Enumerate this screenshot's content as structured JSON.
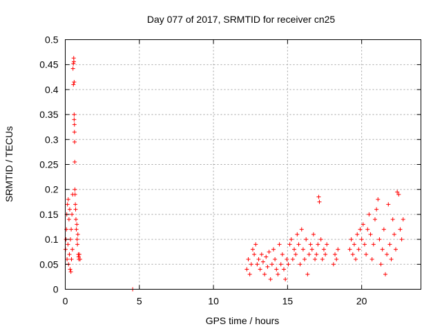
{
  "chart_data": {
    "type": "scatter",
    "title": "Day 077 of 2017, SRMTID for receiver cn25",
    "xlabel": "GPS time / hours",
    "ylabel": "SRMTID / TECUs",
    "xlim": [
      0,
      24
    ],
    "ylim": [
      0,
      0.5
    ],
    "grid": true,
    "marker": "plus",
    "colors": {
      "series": "#ff0000",
      "axis": "#000000",
      "grid": "#a0a0a0"
    },
    "x_ticks": [
      "0",
      "5",
      "10",
      "15",
      "20"
    ],
    "x_tick_values": [
      0,
      5,
      10,
      15,
      20
    ],
    "y_ticks": [
      "0",
      "0.05",
      "0.1",
      "0.15",
      "0.2",
      "0.25",
      "0.3",
      "0.35",
      "0.4",
      "0.45",
      "0.5"
    ],
    "y_tick_values": [
      0,
      0.05,
      0.1,
      0.15,
      0.2,
      0.25,
      0.3,
      0.35,
      0.4,
      0.45,
      0.5
    ],
    "series": [
      {
        "name": "SRMTID",
        "x": [
          0.02,
          0.05,
          0.08,
          0.1,
          0.12,
          0.15,
          0.18,
          0.2,
          0.22,
          0.25,
          0.28,
          0.3,
          0.33,
          0.35,
          0.38,
          0.4,
          0.42,
          0.45,
          0.48,
          0.5,
          0.52,
          0.55,
          0.55,
          0.57,
          0.58,
          0.6,
          0.6,
          0.6,
          0.62,
          0.62,
          0.63,
          0.64,
          0.65,
          0.66,
          0.68,
          0.7,
          0.72,
          0.75,
          0.78,
          0.8,
          0.82,
          0.85,
          0.88,
          0.9,
          0.92,
          0.95,
          1.0,
          4.55,
          12.25,
          12.35,
          12.45,
          12.55,
          12.65,
          12.75,
          12.85,
          12.95,
          13.05,
          13.15,
          13.25,
          13.35,
          13.45,
          13.55,
          13.65,
          13.75,
          13.85,
          13.95,
          14.05,
          14.15,
          14.25,
          14.35,
          14.45,
          14.55,
          14.65,
          14.75,
          14.85,
          14.95,
          15.05,
          15.15,
          15.25,
          15.35,
          15.45,
          15.55,
          15.65,
          15.75,
          15.85,
          15.95,
          16.05,
          16.15,
          16.25,
          16.35,
          16.45,
          16.55,
          16.65,
          16.75,
          16.85,
          16.95,
          17.05,
          17.1,
          17.15,
          17.25,
          17.35,
          17.45,
          17.55,
          17.65,
          18.1,
          18.2,
          18.3,
          18.4,
          19.2,
          19.3,
          19.4,
          19.5,
          19.6,
          19.7,
          19.8,
          19.9,
          20.0,
          20.1,
          20.2,
          20.3,
          20.4,
          20.5,
          20.6,
          20.7,
          20.8,
          20.9,
          21.0,
          21.1,
          21.2,
          21.3,
          21.4,
          21.5,
          21.6,
          21.7,
          21.8,
          21.9,
          22.0,
          22.1,
          22.2,
          22.3,
          22.4,
          22.5,
          22.6,
          22.7,
          22.8
        ],
        "y": [
          0.08,
          0.1,
          0.12,
          0.15,
          0.06,
          0.17,
          0.09,
          0.18,
          0.05,
          0.14,
          0.07,
          0.16,
          0.04,
          0.1,
          0.035,
          0.12,
          0.06,
          0.15,
          0.08,
          0.19,
          0.442,
          0.452,
          0.41,
          0.463,
          0.456,
          0.415,
          0.35,
          0.34,
          0.33,
          0.315,
          0.295,
          0.255,
          0.2,
          0.19,
          0.17,
          0.16,
          0.14,
          0.12,
          0.13,
          0.1,
          0.09,
          0.11,
          0.07,
          0.065,
          0.06,
          0.07,
          0.06,
          0.0,
          0.04,
          0.06,
          0.03,
          0.05,
          0.08,
          0.07,
          0.09,
          0.05,
          0.06,
          0.04,
          0.07,
          0.055,
          0.03,
          0.065,
          0.045,
          0.075,
          0.02,
          0.05,
          0.08,
          0.06,
          0.04,
          0.03,
          0.09,
          0.05,
          0.07,
          0.04,
          0.02,
          0.06,
          0.05,
          0.09,
          0.1,
          0.06,
          0.08,
          0.07,
          0.11,
          0.09,
          0.05,
          0.12,
          0.08,
          0.06,
          0.1,
          0.03,
          0.07,
          0.09,
          0.08,
          0.11,
          0.06,
          0.07,
          0.09,
          0.185,
          0.175,
          0.1,
          0.06,
          0.08,
          0.07,
          0.09,
          0.05,
          0.07,
          0.06,
          0.08,
          0.08,
          0.1,
          0.07,
          0.09,
          0.06,
          0.11,
          0.08,
          0.12,
          0.1,
          0.13,
          0.09,
          0.07,
          0.12,
          0.15,
          0.11,
          0.06,
          0.09,
          0.14,
          0.16,
          0.18,
          0.1,
          0.05,
          0.08,
          0.12,
          0.03,
          0.07,
          0.17,
          0.09,
          0.06,
          0.14,
          0.11,
          0.08,
          0.195,
          0.19,
          0.12,
          0.1,
          0.14
        ]
      }
    ]
  }
}
